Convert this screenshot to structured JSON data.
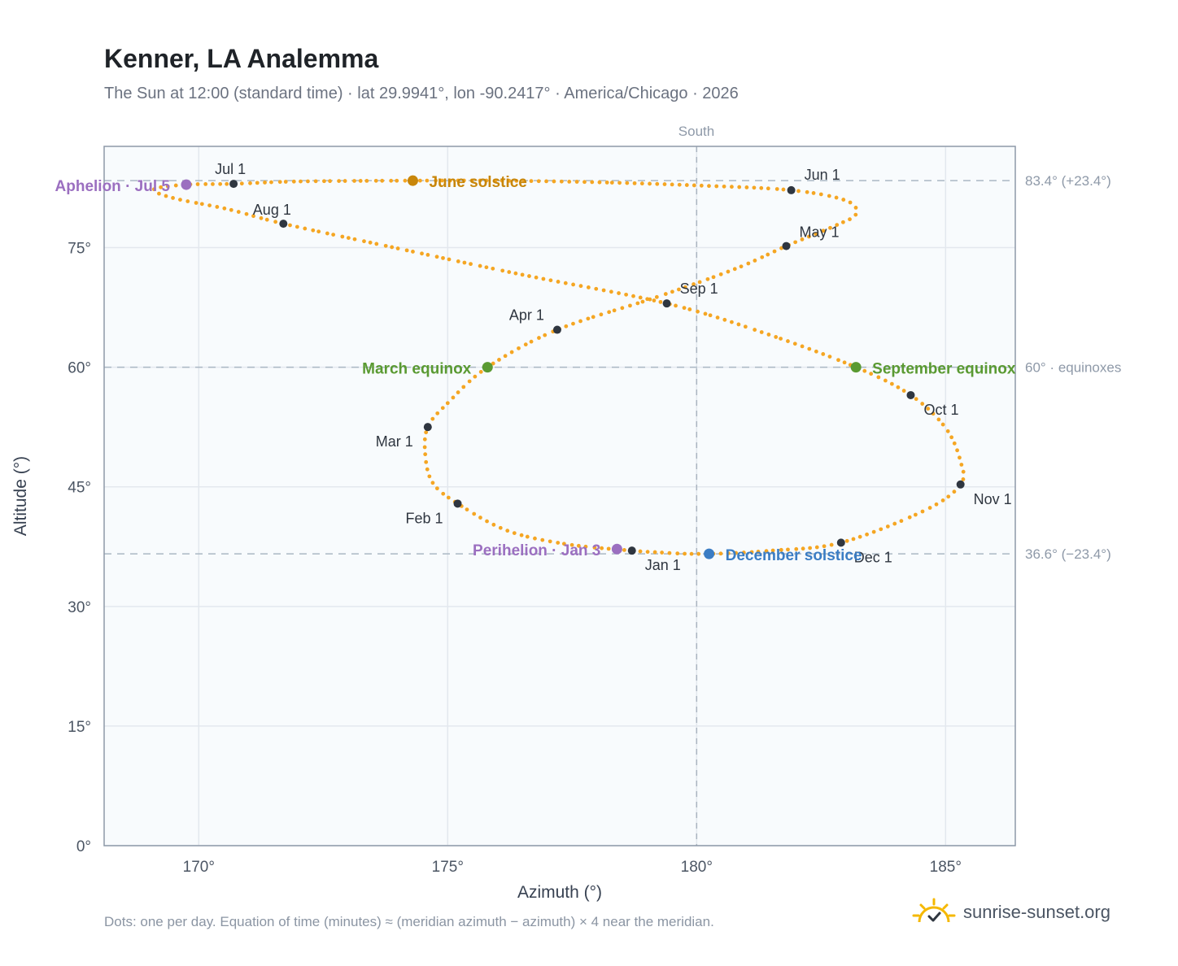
{
  "title": "Kenner, LA Analemma",
  "subtitle": "The Sun at 12:00 (standard time) · lat 29.9941°, lon -90.2417° · America/Chicago · 2026",
  "footnote": "Dots: one per day. Equation of time (minutes) ≈ (meridian azimuth − azimuth) × 4 near the meridian.",
  "brand": "sunrise-sunset.org",
  "colors": {
    "curve": "#f5a623",
    "month_marker": "#2f3640",
    "equinox": "#5a9a32",
    "june_solstice": "#c8860a",
    "december_solstice": "#3b7dc4",
    "apsis": "#9b6fc0",
    "brand_sun": "#f5b800"
  },
  "chart_data": {
    "type": "scatter",
    "xlabel": "Azimuth (°)",
    "ylabel": "Altitude (°)",
    "xlim": [
      168.1,
      186.4
    ],
    "ylim": [
      0,
      87.7
    ],
    "x_ticks": [
      170,
      175,
      180,
      185
    ],
    "x_tick_labels": [
      "170°",
      "175°",
      "180°",
      "185°"
    ],
    "y_ticks": [
      0,
      15,
      30,
      45,
      60,
      75
    ],
    "y_tick_labels": [
      "0°",
      "15°",
      "30°",
      "45°",
      "60°",
      "75°"
    ],
    "grid": true,
    "meridian": {
      "azimuth": 180,
      "label": "South"
    },
    "reference_lines": [
      {
        "altitude": 83.4,
        "label": "83.4° (+23.4°)"
      },
      {
        "altitude": 60,
        "label": "60° · equinoxes"
      },
      {
        "altitude": 36.6,
        "label": "36.6° (−23.4°)"
      }
    ],
    "month_markers": [
      {
        "label": "Jan 1",
        "azimuth": 178.7,
        "altitude": 37.0
      },
      {
        "label": "Feb 1",
        "azimuth": 175.2,
        "altitude": 42.9
      },
      {
        "label": "Mar 1",
        "azimuth": 174.6,
        "altitude": 52.5
      },
      {
        "label": "Apr 1",
        "azimuth": 177.2,
        "altitude": 64.7
      },
      {
        "label": "May 1",
        "azimuth": 181.8,
        "altitude": 75.2
      },
      {
        "label": "Jun 1",
        "azimuth": 181.9,
        "altitude": 82.2
      },
      {
        "label": "Jul 1",
        "azimuth": 170.7,
        "altitude": 83.0
      },
      {
        "label": "Aug 1",
        "azimuth": 171.7,
        "altitude": 78.0
      },
      {
        "label": "Sep 1",
        "azimuth": 179.4,
        "altitude": 68.0
      },
      {
        "label": "Oct 1",
        "azimuth": 184.3,
        "altitude": 56.5
      },
      {
        "label": "Nov 1",
        "azimuth": 185.3,
        "altitude": 45.3
      },
      {
        "label": "Dec 1",
        "azimuth": 182.9,
        "altitude": 38.0
      }
    ],
    "events": [
      {
        "label": "March equinox",
        "azimuth": 175.8,
        "altitude": 60.0,
        "kind": "equinox"
      },
      {
        "label": "June solstice",
        "azimuth": 174.3,
        "altitude": 83.4,
        "kind": "june_solstice"
      },
      {
        "label": "September equinox",
        "azimuth": 183.2,
        "altitude": 60.0,
        "kind": "equinox"
      },
      {
        "label": "December solstice",
        "azimuth": 180.25,
        "altitude": 36.6,
        "kind": "december_solstice"
      },
      {
        "label": "Perihelion · Jan 3",
        "azimuth": 178.4,
        "altitude": 37.2,
        "kind": "apsis"
      },
      {
        "label": "Aphelion · Jul 5",
        "azimuth": 169.75,
        "altitude": 82.9,
        "kind": "apsis"
      }
    ],
    "analemma_path": [
      [
        178.7,
        37.0
      ],
      [
        177.4,
        37.8
      ],
      [
        176.2,
        39.5
      ],
      [
        175.2,
        42.9
      ],
      [
        174.7,
        45.5
      ],
      [
        174.55,
        49.0
      ],
      [
        174.6,
        52.5
      ],
      [
        175.0,
        55.5
      ],
      [
        175.8,
        60.0
      ],
      [
        177.2,
        64.7
      ],
      [
        179.2,
        68.8
      ],
      [
        180.8,
        72.4
      ],
      [
        181.8,
        75.2
      ],
      [
        182.8,
        77.8
      ],
      [
        183.2,
        79.2
      ],
      [
        183.0,
        80.9
      ],
      [
        181.9,
        82.2
      ],
      [
        180.0,
        82.8
      ],
      [
        178.0,
        83.2
      ],
      [
        176.0,
        83.4
      ],
      [
        174.3,
        83.4
      ],
      [
        172.0,
        83.3
      ],
      [
        170.7,
        83.0
      ],
      [
        169.75,
        82.9
      ],
      [
        169.1,
        82.3
      ],
      [
        169.5,
        81.2
      ],
      [
        170.6,
        79.8
      ],
      [
        171.7,
        78.0
      ],
      [
        174.0,
        74.9
      ],
      [
        176.5,
        71.6
      ],
      [
        179.4,
        68.0
      ],
      [
        181.4,
        64.2
      ],
      [
        183.2,
        60.0
      ],
      [
        184.3,
        56.5
      ],
      [
        185.0,
        52.4
      ],
      [
        185.3,
        48.2
      ],
      [
        185.3,
        45.3
      ],
      [
        184.6,
        42.1
      ],
      [
        182.9,
        38.0
      ],
      [
        181.5,
        37.0
      ],
      [
        180.25,
        36.6
      ],
      [
        179.2,
        36.8
      ],
      [
        178.7,
        37.0
      ]
    ]
  }
}
